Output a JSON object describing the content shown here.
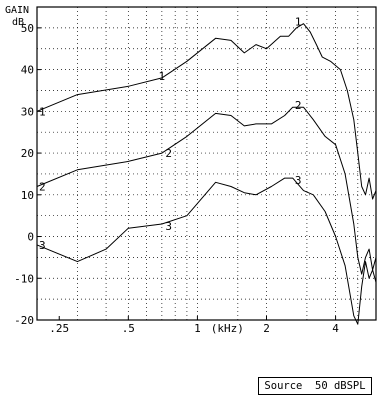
{
  "chart_data": {
    "type": "line",
    "ylabel": "GAIN",
    "yunit": "dB",
    "xunit": "(kHz)",
    "ylim": [
      -20,
      55
    ],
    "xlim": [
      0.2,
      6.0
    ],
    "xscale": "log",
    "grid": true,
    "y_ticks": [
      -20,
      -10,
      0,
      10,
      20,
      30,
      40,
      50
    ],
    "x_ticks": [
      {
        "value": 0.25,
        "label": ".25"
      },
      {
        "value": 0.5,
        "label": ".5"
      },
      {
        "value": 1,
        "label": "1"
      },
      {
        "value": 2,
        "label": "2"
      },
      {
        "value": 4,
        "label": "4"
      }
    ],
    "x_unit_pos": 1.35,
    "grid_x": [
      0.2,
      0.3,
      0.4,
      0.5,
      0.6,
      0.7,
      0.8,
      0.9,
      1,
      1.5,
      2,
      3,
      4,
      5,
      6
    ],
    "series": [
      {
        "name": "1",
        "points": [
          [
            0.2,
            30
          ],
          [
            0.3,
            34
          ],
          [
            0.5,
            36
          ],
          [
            0.7,
            38
          ],
          [
            0.9,
            42
          ],
          [
            1.2,
            47.5
          ],
          [
            1.4,
            47
          ],
          [
            1.6,
            44
          ],
          [
            1.8,
            46
          ],
          [
            2.0,
            45
          ],
          [
            2.3,
            48
          ],
          [
            2.5,
            48
          ],
          [
            2.7,
            50
          ],
          [
            2.9,
            51
          ],
          [
            3.1,
            49
          ],
          [
            3.3,
            46
          ],
          [
            3.5,
            43
          ],
          [
            3.8,
            42
          ],
          [
            4.2,
            40
          ],
          [
            4.5,
            35
          ],
          [
            4.8,
            28
          ],
          [
            5.0,
            20
          ],
          [
            5.2,
            12
          ],
          [
            5.4,
            10
          ],
          [
            5.6,
            14
          ],
          [
            5.8,
            9
          ],
          [
            6.0,
            11
          ]
        ],
        "label_positions": [
          [
            0.2,
            30
          ],
          [
            0.7,
            38.5
          ],
          [
            2.75,
            51.5
          ]
        ]
      },
      {
        "name": "2",
        "points": [
          [
            0.2,
            12
          ],
          [
            0.3,
            16
          ],
          [
            0.5,
            18
          ],
          [
            0.7,
            20
          ],
          [
            0.9,
            24
          ],
          [
            1.2,
            29.5
          ],
          [
            1.4,
            29
          ],
          [
            1.6,
            26.5
          ],
          [
            1.8,
            27
          ],
          [
            2.1,
            27
          ],
          [
            2.4,
            29
          ],
          [
            2.6,
            31
          ],
          [
            2.9,
            31
          ],
          [
            3.2,
            28
          ],
          [
            3.6,
            24
          ],
          [
            4.0,
            22
          ],
          [
            4.4,
            15
          ],
          [
            4.8,
            3
          ],
          [
            5.0,
            -5
          ],
          [
            5.2,
            -9
          ],
          [
            5.4,
            -5
          ],
          [
            5.6,
            -3
          ],
          [
            5.8,
            -8
          ],
          [
            6.0,
            -5
          ]
        ],
        "label_positions": [
          [
            0.2,
            12
          ],
          [
            0.75,
            20
          ],
          [
            2.75,
            31.5
          ]
        ]
      },
      {
        "name": "3",
        "points": [
          [
            0.2,
            -2
          ],
          [
            0.3,
            -6
          ],
          [
            0.4,
            -3
          ],
          [
            0.5,
            2
          ],
          [
            0.7,
            3
          ],
          [
            0.9,
            5
          ],
          [
            1.2,
            13
          ],
          [
            1.4,
            12
          ],
          [
            1.6,
            10.5
          ],
          [
            1.8,
            10
          ],
          [
            2.1,
            12
          ],
          [
            2.4,
            14
          ],
          [
            2.6,
            14
          ],
          [
            2.9,
            11
          ],
          [
            3.2,
            10
          ],
          [
            3.6,
            6
          ],
          [
            4.0,
            0
          ],
          [
            4.4,
            -7
          ],
          [
            4.8,
            -19
          ],
          [
            5.0,
            -21
          ],
          [
            5.2,
            -12
          ],
          [
            5.4,
            -6
          ],
          [
            5.6,
            -10
          ],
          [
            5.8,
            -8
          ],
          [
            6.0,
            -11
          ]
        ],
        "label_positions": [
          [
            0.2,
            -2
          ],
          [
            0.75,
            2.5
          ],
          [
            2.75,
            13.5
          ]
        ]
      }
    ],
    "annotation": "Source  50 dBSPL"
  }
}
